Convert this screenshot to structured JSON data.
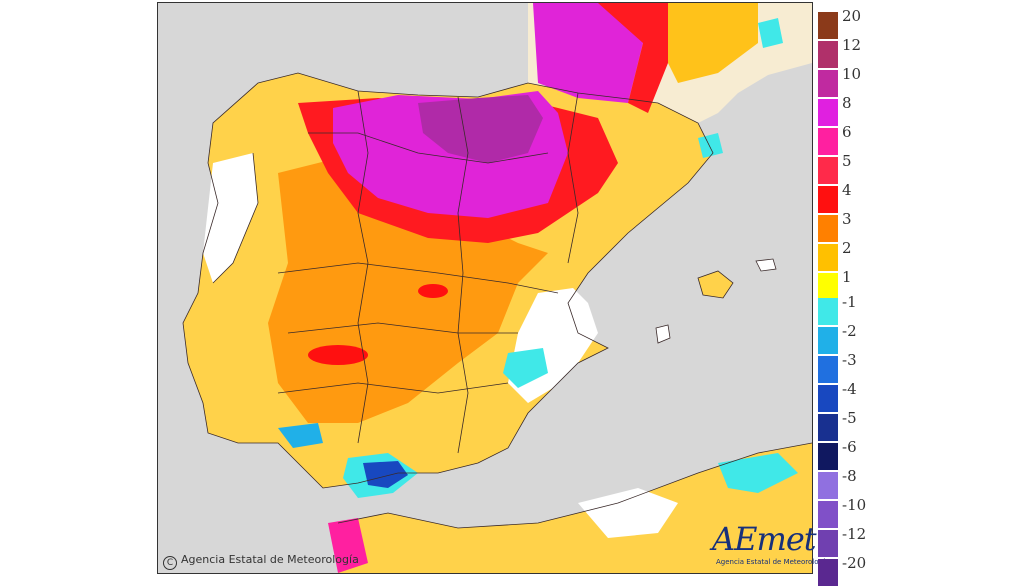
{
  "map": {
    "copyright_text": "Agencia Estatal de Meteorología",
    "copyright_symbol": "C",
    "logo_text": "AEmet",
    "logo_subtext": "Agencia Estatal de Meteorología",
    "land_colors": {
      "sea": "#d7d7d7",
      "country_outside": "#f7ecd2",
      "anomaly_0": "#ffffff"
    }
  },
  "legend": {
    "positive": [
      {
        "label": "20",
        "color": "#8b3a1a"
      },
      {
        "label": "12",
        "color": "#b0306a"
      },
      {
        "label": "10",
        "color": "#c02aa0"
      },
      {
        "label": "8",
        "color": "#e020e0"
      },
      {
        "label": "6",
        "color": "#ff20a0"
      },
      {
        "label": "5",
        "color": "#ff2a4a"
      },
      {
        "label": "4",
        "color": "#ff1010"
      },
      {
        "label": "3",
        "color": "#ff8000"
      },
      {
        "label": "2",
        "color": "#ffc000"
      },
      {
        "label": "1",
        "color": "#ffff00"
      }
    ],
    "negative": [
      {
        "label": "-1",
        "color": "#40e8e8"
      },
      {
        "label": "-2",
        "color": "#20b0e8"
      },
      {
        "label": "-3",
        "color": "#2070e0"
      },
      {
        "label": "-4",
        "color": "#1848c0"
      },
      {
        "label": "-5",
        "color": "#183090"
      },
      {
        "label": "-6",
        "color": "#101860"
      },
      {
        "label": "-8",
        "color": "#9070e0"
      },
      {
        "label": "-10",
        "color": "#8050c8"
      },
      {
        "label": "-12",
        "color": "#7040b0"
      },
      {
        "label": "-20",
        "color": "#5a2890"
      }
    ]
  }
}
